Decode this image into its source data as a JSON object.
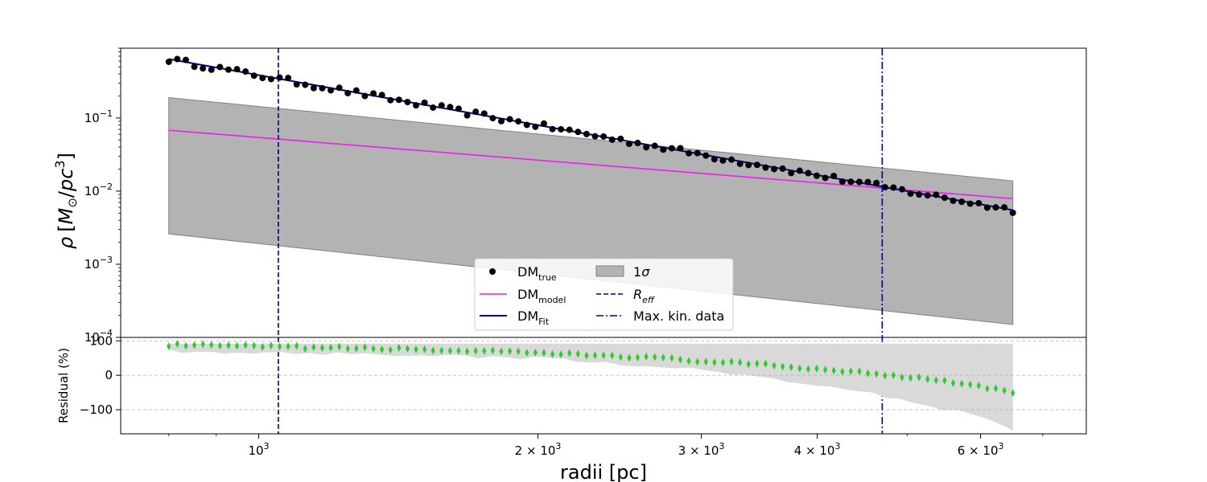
{
  "chart_data": [
    {
      "type": "line",
      "panel": "top",
      "ylabel_parts": [
        "ρ",
        "[",
        "M",
        "⊙",
        "/",
        "pc",
        "3",
        "]"
      ],
      "xscale": "log",
      "yscale": "log",
      "xlim": [
        710,
        7800
      ],
      "ylim": [
        0.0001,
        0.9
      ],
      "y_ticks": [
        {
          "value": 0.1,
          "base": "10",
          "exp": "−1"
        },
        {
          "value": 0.01,
          "base": "10",
          "exp": "−2"
        },
        {
          "value": 0.001,
          "base": "10",
          "exp": "−3"
        },
        {
          "value": 0.0001,
          "base": "10",
          "exp": "−4"
        }
      ],
      "dm_true": {
        "r_start": 800,
        "r_end": 6500,
        "count": 100,
        "log_rho_start": -0.2,
        "log_rho_end": -2.26,
        "scatter": 0.04
      },
      "dm_model": {
        "r": [
          800,
          6500
        ],
        "rho": [
          0.068,
          0.0079
        ]
      },
      "dm_fit": {
        "r": [
          800,
          6500
        ],
        "rho": [
          0.64,
          0.0055
        ]
      },
      "sigma_band": {
        "r": [
          800,
          6500
        ],
        "upper": [
          0.19,
          0.0138
        ],
        "lower": [
          0.0026,
          0.00015
        ]
      },
      "r_eff": 1050,
      "max_kin_data": 4700,
      "legend": {
        "position": "lower-center",
        "items": [
          {
            "key": "dm_true",
            "base": "DM",
            "sub": "true"
          },
          {
            "key": "dm_model",
            "base": "DM",
            "sub": "model"
          },
          {
            "key": "dm_fit",
            "base": "DM",
            "sub": "Fit"
          },
          {
            "key": "sigma",
            "base": "1",
            "ital": "σ"
          },
          {
            "key": "reff",
            "base": "R",
            "sub": "eff",
            "italic": true
          },
          {
            "key": "maxkin",
            "label": "Max. kin. data"
          }
        ]
      },
      "colors": {
        "dm_true": "#000000",
        "dm_model": "#ee1cee",
        "dm_fit": "#00008b",
        "band": "#b3b3b3",
        "reff": "#00008b",
        "maxkin": "#00008b"
      }
    },
    {
      "type": "scatter",
      "panel": "bottom",
      "ylabel": "Residual (%)",
      "xlabel": "radii [pc]",
      "xscale": "log",
      "xlim": [
        710,
        7800
      ],
      "ylim": [
        -170,
        110
      ],
      "y_ticks": [
        "100",
        "0",
        "−100"
      ],
      "y_tick_values": [
        100,
        0,
        -100
      ],
      "x_ticks": [
        {
          "value": 1000,
          "base": "10",
          "exp": "3",
          "pre": ""
        },
        {
          "value": 2000,
          "base": "10",
          "exp": "3",
          "pre": "2 × "
        },
        {
          "value": 3000,
          "base": "10",
          "exp": "3",
          "pre": "3 × "
        },
        {
          "value": 4000,
          "base": "10",
          "exp": "3",
          "pre": "4 × "
        },
        {
          "value": 6000,
          "base": "10",
          "exp": "3",
          "pre": "6 × "
        }
      ],
      "gridlines_y": [
        100,
        0,
        -100
      ],
      "residuals": {
        "r_start": 800,
        "r_end": 6500,
        "count": 100,
        "anchors": [
          [
            800,
            88
          ],
          [
            1500,
            75
          ],
          [
            2500,
            55
          ],
          [
            3500,
            30
          ],
          [
            4500,
            8
          ],
          [
            5500,
            -15
          ],
          [
            6500,
            -48
          ]
        ]
      },
      "residual_band": {
        "upper": 92,
        "lower_anchors": [
          [
            800,
            70
          ],
          [
            1200,
            63
          ],
          [
            2000,
            50
          ],
          [
            3000,
            15
          ],
          [
            3500,
            -10
          ],
          [
            4500,
            -50
          ],
          [
            5500,
            -100
          ],
          [
            6000,
            -115
          ],
          [
            6500,
            -155
          ]
        ]
      },
      "colors": {
        "points": "#2ecc2e",
        "band": "#d9d9d9"
      }
    }
  ]
}
